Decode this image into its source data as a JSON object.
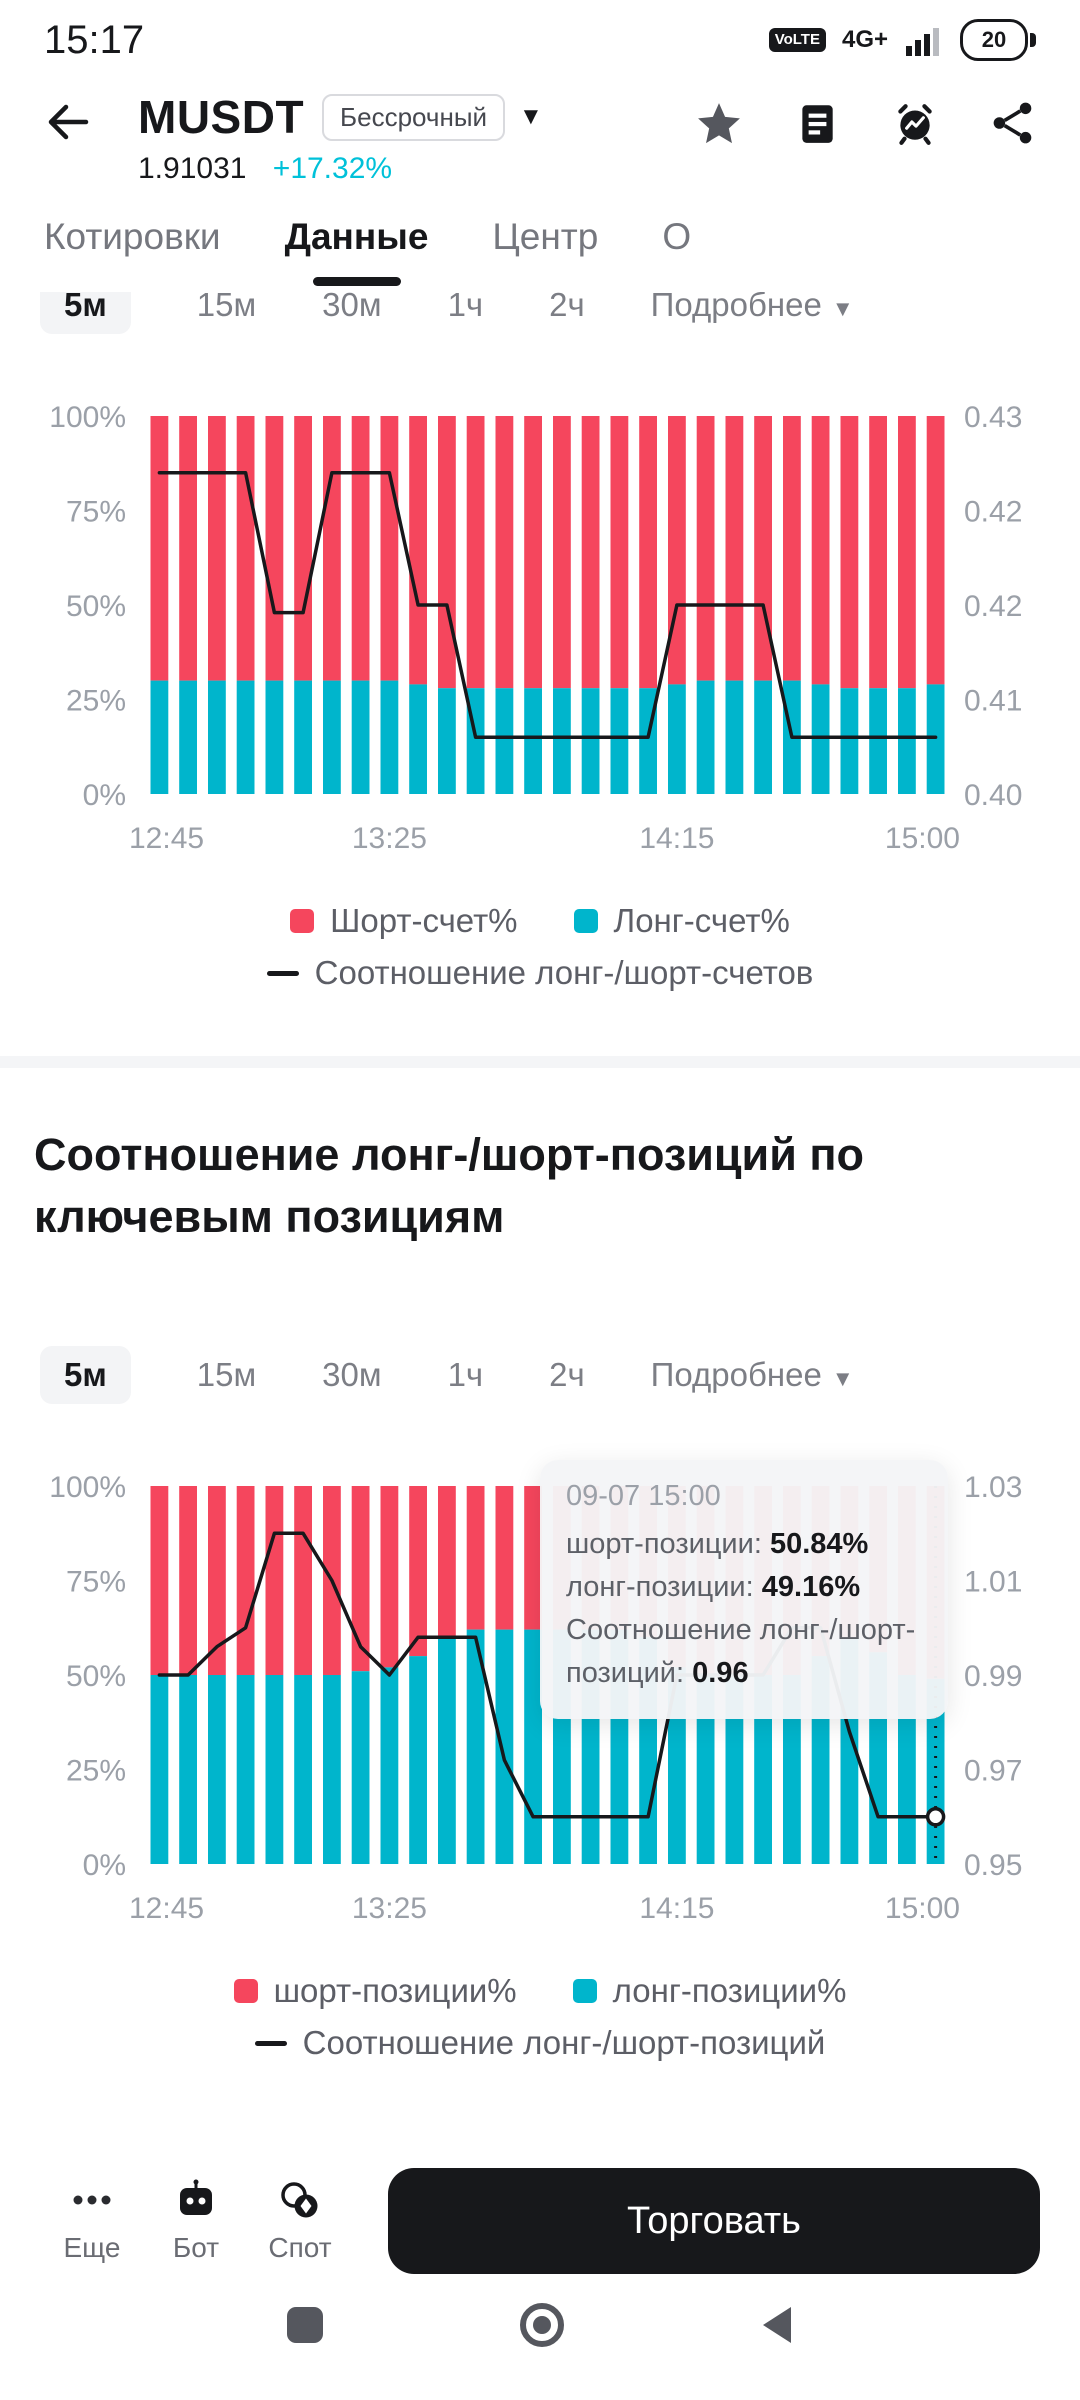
{
  "status_bar": {
    "time": "15:17",
    "volte": "VoLTE",
    "network": "4G+",
    "battery": "20"
  },
  "header": {
    "symbol": "MUSDT",
    "contract_type": "Бессрочный",
    "price": "1.91031",
    "change": "+17.32%"
  },
  "tabs": [
    {
      "label": "Котировки",
      "active": false
    },
    {
      "label": "Данные",
      "active": true
    },
    {
      "label": "Центр",
      "active": false
    },
    {
      "label": "О",
      "active": false
    }
  ],
  "timeframes": {
    "options": [
      "5м",
      "15м",
      "30м",
      "1ч",
      "2ч"
    ],
    "selected": "5м",
    "more_label": "Подробнее"
  },
  "section2": {
    "title": "Соотношение лонг-/шорт-позиций по ключевым позициям"
  },
  "tooltip": {
    "title": "09-07 15:00",
    "rows": [
      {
        "label": "шорт-позиции:",
        "value": "50.84%"
      },
      {
        "label": "лонг-позиции:",
        "value": "49.16%"
      },
      {
        "label": "Соотношение лонг-/шорт-позиций:",
        "value": "0.96"
      }
    ]
  },
  "chart_data": [
    {
      "type": "bar",
      "subtype": "stacked_percent_with_line",
      "title": "Соотношение лонг-/шорт-счетов",
      "x_ticks": [
        "12:45",
        "13:25",
        "14:15",
        "15:00"
      ],
      "x_tick_positions": [
        0,
        8,
        18,
        27
      ],
      "y_left_ticks": [
        "100%",
        "75%",
        "50%",
        "25%",
        "0%"
      ],
      "y_right_ticks": [
        "0.43",
        "0.42",
        "0.42",
        "0.41",
        "0.40"
      ],
      "y_right_range": [
        0.4,
        0.43
      ],
      "series": [
        {
          "name": "Шорт-счет%",
          "color": "#F5465D",
          "values": [
            70,
            70,
            70,
            70,
            70,
            70,
            70,
            70,
            70,
            71,
            72,
            72,
            72,
            72,
            72,
            72,
            72,
            72,
            71,
            70,
            70,
            70,
            70,
            71,
            72,
            72,
            72,
            71
          ]
        },
        {
          "name": "Лонг-счет%",
          "color": "#00B5CC",
          "values": [
            30,
            30,
            30,
            30,
            30,
            30,
            30,
            30,
            30,
            29,
            28,
            28,
            28,
            28,
            28,
            28,
            28,
            28,
            29,
            30,
            30,
            30,
            30,
            29,
            28,
            28,
            28,
            29
          ]
        }
      ],
      "line": {
        "name": "Соотношение лонг-/шорт-счетов",
        "color": "#17181B",
        "values": [
          0.4255,
          0.4255,
          0.4255,
          0.4255,
          0.4144,
          0.4144,
          0.4255,
          0.4255,
          0.4255,
          0.415,
          0.415,
          0.4045,
          0.4045,
          0.4045,
          0.4045,
          0.4045,
          0.4045,
          0.4045,
          0.415,
          0.415,
          0.415,
          0.415,
          0.4045,
          0.4045,
          0.4045,
          0.4045,
          0.4045,
          0.4045
        ]
      },
      "crosshair_index": null,
      "marker_at_end": false
    },
    {
      "type": "bar",
      "subtype": "stacked_percent_with_line",
      "title": "Соотношение лонг-/шорт-позиций по ключевым позициям",
      "x_ticks": [
        "12:45",
        "13:25",
        "14:15",
        "15:00"
      ],
      "x_tick_positions": [
        0,
        8,
        18,
        27
      ],
      "y_left_ticks": [
        "100%",
        "75%",
        "50%",
        "25%",
        "0%"
      ],
      "y_right_ticks": [
        "1.03",
        "1.01",
        "0.99",
        "0.97",
        "0.95"
      ],
      "y_right_range": [
        0.95,
        1.03
      ],
      "series": [
        {
          "name": "шорт-позиции%",
          "color": "#F5465D",
          "values": [
            50,
            50,
            50,
            50,
            50,
            50,
            50,
            49,
            48,
            45,
            40,
            38,
            38,
            38,
            38,
            38,
            38,
            40,
            48,
            50,
            50,
            50,
            50,
            45,
            40,
            44,
            50,
            51
          ]
        },
        {
          "name": "лонг-позиции%",
          "color": "#00B5CC",
          "values": [
            50,
            50,
            50,
            50,
            50,
            50,
            50,
            51,
            52,
            55,
            60,
            62,
            62,
            62,
            62,
            62,
            62,
            60,
            52,
            50,
            50,
            50,
            50,
            55,
            60,
            56,
            50,
            49
          ]
        }
      ],
      "line": {
        "name": "Соотношение лонг-/шорт-позиций",
        "color": "#17181B",
        "values": [
          0.99,
          0.99,
          0.996,
          1.0,
          1.02,
          1.02,
          1.01,
          0.996,
          0.99,
          0.998,
          0.998,
          0.998,
          0.972,
          0.96,
          0.96,
          0.96,
          0.96,
          0.96,
          0.99,
          0.99,
          0.99,
          0.99,
          1.0,
          1.0,
          0.978,
          0.96,
          0.96,
          0.96
        ]
      },
      "crosshair_index": 27,
      "marker_at_end": true
    }
  ],
  "bottom_bar": {
    "items": [
      {
        "label": "Еще",
        "icon": "more-dots-icon"
      },
      {
        "label": "Бот",
        "icon": "bot-icon"
      },
      {
        "label": "Спот",
        "icon": "spot-icon"
      }
    ],
    "trade_button": "Торговать"
  },
  "colors": {
    "red": "#F5465D",
    "cyan": "#00B5CC",
    "change_accent": "#00C1D9",
    "ink": "#17181B"
  }
}
